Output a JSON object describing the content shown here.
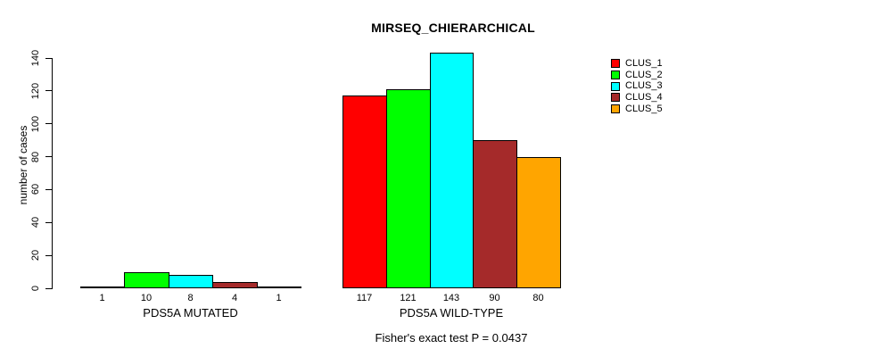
{
  "chart_data": {
    "type": "bar",
    "title": "MIRSEQ_CHIERARCHICAL",
    "ylabel": "number of cases",
    "xlabel": "",
    "ylim": [
      0,
      140
    ],
    "yticks": [
      0,
      20,
      40,
      60,
      80,
      100,
      120,
      140
    ],
    "grid": false,
    "legend_position": "right",
    "series": [
      "CLUS_1",
      "CLUS_2",
      "CLUS_3",
      "CLUS_4",
      "CLUS_5"
    ],
    "colors": [
      "#FF0000",
      "#00FF00",
      "#00FFFF",
      "#A52A2A",
      "#FFA500"
    ],
    "groups": [
      {
        "label": "PDS5A MUTATED",
        "values": [
          1,
          10,
          8,
          4,
          1
        ]
      },
      {
        "label": "PDS5A WILD-TYPE",
        "values": [
          117,
          121,
          143,
          90,
          80
        ]
      }
    ],
    "bar_value_labels": [
      [
        "1",
        "10",
        "8",
        "4",
        "1"
      ],
      [
        "117",
        "121",
        "143",
        "90",
        "80"
      ]
    ],
    "footer": "Fisher's exact test P = 0.0437"
  }
}
